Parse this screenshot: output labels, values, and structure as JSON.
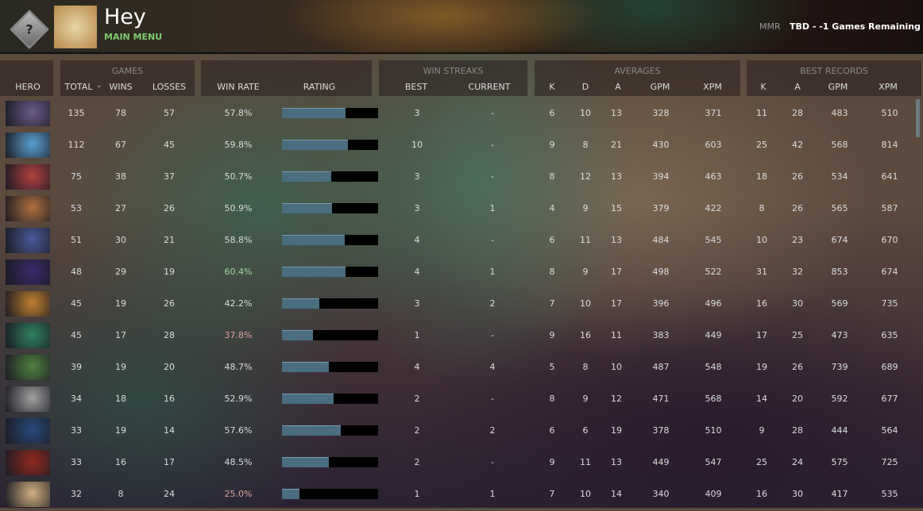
{
  "header": {
    "player_name": "Hey",
    "main_menu": "MAIN MENU",
    "mmr_label": "MMR",
    "mmr_value": "TBD - -1 Games Remaining",
    "rank_icon": "unknown-rank-medal-icon"
  },
  "groups": {
    "games": "GAMES",
    "win_streaks": "WIN STREAKS",
    "averages": "AVERAGES",
    "best_records": "BEST RECORDS"
  },
  "columns": {
    "hero": "HERO",
    "total": "TOTAL",
    "wins": "WINS",
    "losses": "LOSSES",
    "win_rate": "WIN RATE",
    "rating": "RATING",
    "best": "BEST",
    "current": "CURRENT",
    "avg_k": "K",
    "avg_d": "D",
    "avg_a": "A",
    "avg_gpm": "GPM",
    "avg_xpm": "XPM",
    "best_k": "K",
    "best_a": "A",
    "best_gpm": "GPM",
    "best_xpm": "XPM"
  },
  "sort": {
    "column": "total",
    "direction": "descending"
  },
  "colors": {
    "win_rate_high": "#9fd89a",
    "win_rate_low": "#e0a0a0",
    "rating_fill": "#4a6d80",
    "menu_green": "#7ec86f"
  },
  "rows": [
    {
      "total": "135",
      "wins": "78",
      "losses": "57",
      "win_rate": "57.8%",
      "rating": 0.66,
      "best": "3",
      "current": "-",
      "k": "6",
      "d": "10",
      "a": "13",
      "gpm": "328",
      "xpm": "371",
      "bk": "11",
      "ba": "28",
      "bgpm": "483",
      "bxpm": "510",
      "tone": ""
    },
    {
      "total": "112",
      "wins": "67",
      "losses": "45",
      "win_rate": "59.8%",
      "rating": 0.69,
      "best": "10",
      "current": "-",
      "k": "9",
      "d": "8",
      "a": "21",
      "gpm": "430",
      "xpm": "603",
      "bk": "25",
      "ba": "42",
      "bgpm": "568",
      "bxpm": "814",
      "tone": ""
    },
    {
      "total": "75",
      "wins": "38",
      "losses": "37",
      "win_rate": "50.7%",
      "rating": 0.51,
      "best": "3",
      "current": "-",
      "k": "8",
      "d": "12",
      "a": "13",
      "gpm": "394",
      "xpm": "463",
      "bk": "18",
      "ba": "26",
      "bgpm": "534",
      "bxpm": "641",
      "tone": ""
    },
    {
      "total": "53",
      "wins": "27",
      "losses": "26",
      "win_rate": "50.9%",
      "rating": 0.52,
      "best": "3",
      "current": "1",
      "k": "4",
      "d": "9",
      "a": "15",
      "gpm": "379",
      "xpm": "422",
      "bk": "8",
      "ba": "26",
      "bgpm": "565",
      "bxpm": "587",
      "tone": ""
    },
    {
      "total": "51",
      "wins": "30",
      "losses": "21",
      "win_rate": "58.8%",
      "rating": 0.65,
      "best": "4",
      "current": "-",
      "k": "6",
      "d": "11",
      "a": "13",
      "gpm": "484",
      "xpm": "545",
      "bk": "10",
      "ba": "23",
      "bgpm": "674",
      "bxpm": "670",
      "tone": ""
    },
    {
      "total": "48",
      "wins": "29",
      "losses": "19",
      "win_rate": "60.4%",
      "rating": 0.66,
      "best": "4",
      "current": "1",
      "k": "8",
      "d": "9",
      "a": "17",
      "gpm": "498",
      "xpm": "522",
      "bk": "31",
      "ba": "32",
      "bgpm": "853",
      "bxpm": "674",
      "tone": "high"
    },
    {
      "total": "45",
      "wins": "19",
      "losses": "26",
      "win_rate": "42.2%",
      "rating": 0.39,
      "best": "3",
      "current": "2",
      "k": "7",
      "d": "10",
      "a": "17",
      "gpm": "396",
      "xpm": "496",
      "bk": "16",
      "ba": "30",
      "bgpm": "569",
      "bxpm": "735",
      "tone": ""
    },
    {
      "total": "45",
      "wins": "17",
      "losses": "28",
      "win_rate": "37.8%",
      "rating": 0.32,
      "best": "1",
      "current": "-",
      "k": "9",
      "d": "16",
      "a": "11",
      "gpm": "383",
      "xpm": "449",
      "bk": "17",
      "ba": "25",
      "bgpm": "473",
      "bxpm": "635",
      "tone": "low"
    },
    {
      "total": "39",
      "wins": "19",
      "losses": "20",
      "win_rate": "48.7%",
      "rating": 0.49,
      "best": "4",
      "current": "4",
      "k": "5",
      "d": "8",
      "a": "10",
      "gpm": "487",
      "xpm": "548",
      "bk": "19",
      "ba": "26",
      "bgpm": "739",
      "bxpm": "689",
      "tone": ""
    },
    {
      "total": "34",
      "wins": "18",
      "losses": "16",
      "win_rate": "52.9%",
      "rating": 0.54,
      "best": "2",
      "current": "-",
      "k": "8",
      "d": "9",
      "a": "12",
      "gpm": "471",
      "xpm": "568",
      "bk": "14",
      "ba": "20",
      "bgpm": "592",
      "bxpm": "677",
      "tone": ""
    },
    {
      "total": "33",
      "wins": "19",
      "losses": "14",
      "win_rate": "57.6%",
      "rating": 0.61,
      "best": "2",
      "current": "2",
      "k": "6",
      "d": "6",
      "a": "19",
      "gpm": "378",
      "xpm": "510",
      "bk": "9",
      "ba": "28",
      "bgpm": "444",
      "bxpm": "564",
      "tone": ""
    },
    {
      "total": "33",
      "wins": "16",
      "losses": "17",
      "win_rate": "48.5%",
      "rating": 0.49,
      "best": "2",
      "current": "-",
      "k": "9",
      "d": "11",
      "a": "13",
      "gpm": "449",
      "xpm": "547",
      "bk": "25",
      "ba": "24",
      "bgpm": "575",
      "bxpm": "725",
      "tone": ""
    },
    {
      "total": "32",
      "wins": "8",
      "losses": "24",
      "win_rate": "25.0%",
      "rating": 0.18,
      "best": "1",
      "current": "1",
      "k": "7",
      "d": "10",
      "a": "14",
      "gpm": "340",
      "xpm": "409",
      "bk": "16",
      "ba": "30",
      "bgpm": "417",
      "bxpm": "535",
      "tone": "low"
    }
  ]
}
